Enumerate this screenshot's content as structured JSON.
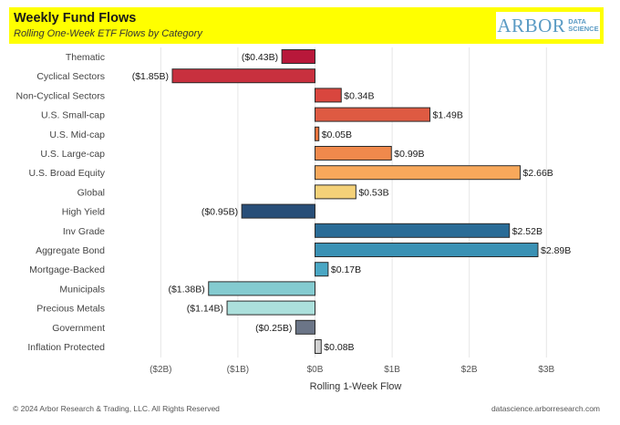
{
  "header": {
    "title": "Weekly Fund Flows",
    "subtitle": "Rolling One-Week ETF Flows by Category",
    "logo_main": "ARBOR",
    "logo_sub_1": "DATA",
    "logo_sub_2": "SCIENCE"
  },
  "footer": {
    "copyright": "© 2024 Arbor Research & Trading, LLC. All Rights Reserved",
    "website": "datascience.arborresearch.com"
  },
  "chart_data": {
    "type": "bar",
    "orientation": "horizontal",
    "title": "Weekly Fund Flows",
    "subtitle": "Rolling One-Week ETF Flows by Category",
    "xlabel": "Rolling 1-Week Flow",
    "ylabel": "",
    "units": "$B",
    "xlim": [
      -2.0,
      3.0
    ],
    "x_ticks": [
      -2,
      -1,
      0,
      1,
      2,
      3
    ],
    "x_tick_labels": [
      "($2B)",
      "($1B)",
      "$0B",
      "$1B",
      "$2B",
      "$3B"
    ],
    "grid": "vertical",
    "categories": [
      "Thematic",
      "Cyclical Sectors",
      "Non-Cyclical Sectors",
      "U.S. Small-cap",
      "U.S. Mid-cap",
      "U.S. Large-cap",
      "U.S. Broad Equity",
      "Global",
      "High Yield",
      "Inv Grade",
      "Aggregate Bond",
      "Mortgage-Backed",
      "Municipals",
      "Precious Metals",
      "Government",
      "Inflation Protected"
    ],
    "values": [
      -0.43,
      -1.85,
      0.34,
      1.49,
      0.05,
      0.99,
      2.66,
      0.53,
      -0.95,
      2.52,
      2.89,
      0.17,
      -1.38,
      -1.14,
      -0.25,
      0.08
    ],
    "data_labels": [
      "($0.43B)",
      "($1.85B)",
      "$0.34B",
      "$1.49B",
      "$0.05B",
      "$0.99B",
      "$2.66B",
      "$0.53B",
      "($0.95B)",
      "$2.52B",
      "$2.89B",
      "$0.17B",
      "($1.38B)",
      "($1.14B)",
      "($0.25B)",
      "$0.08B"
    ],
    "colors": [
      "#b8183a",
      "#c8303e",
      "#d9463e",
      "#de5a42",
      "#e8743e",
      "#f0894c",
      "#f8a85b",
      "#f4d178",
      "#284e78",
      "#2a6c97",
      "#3a91b4",
      "#4aa7c4",
      "#84cbd0",
      "#ace0dc",
      "#6b7587",
      "#d1d1d1"
    ]
  }
}
